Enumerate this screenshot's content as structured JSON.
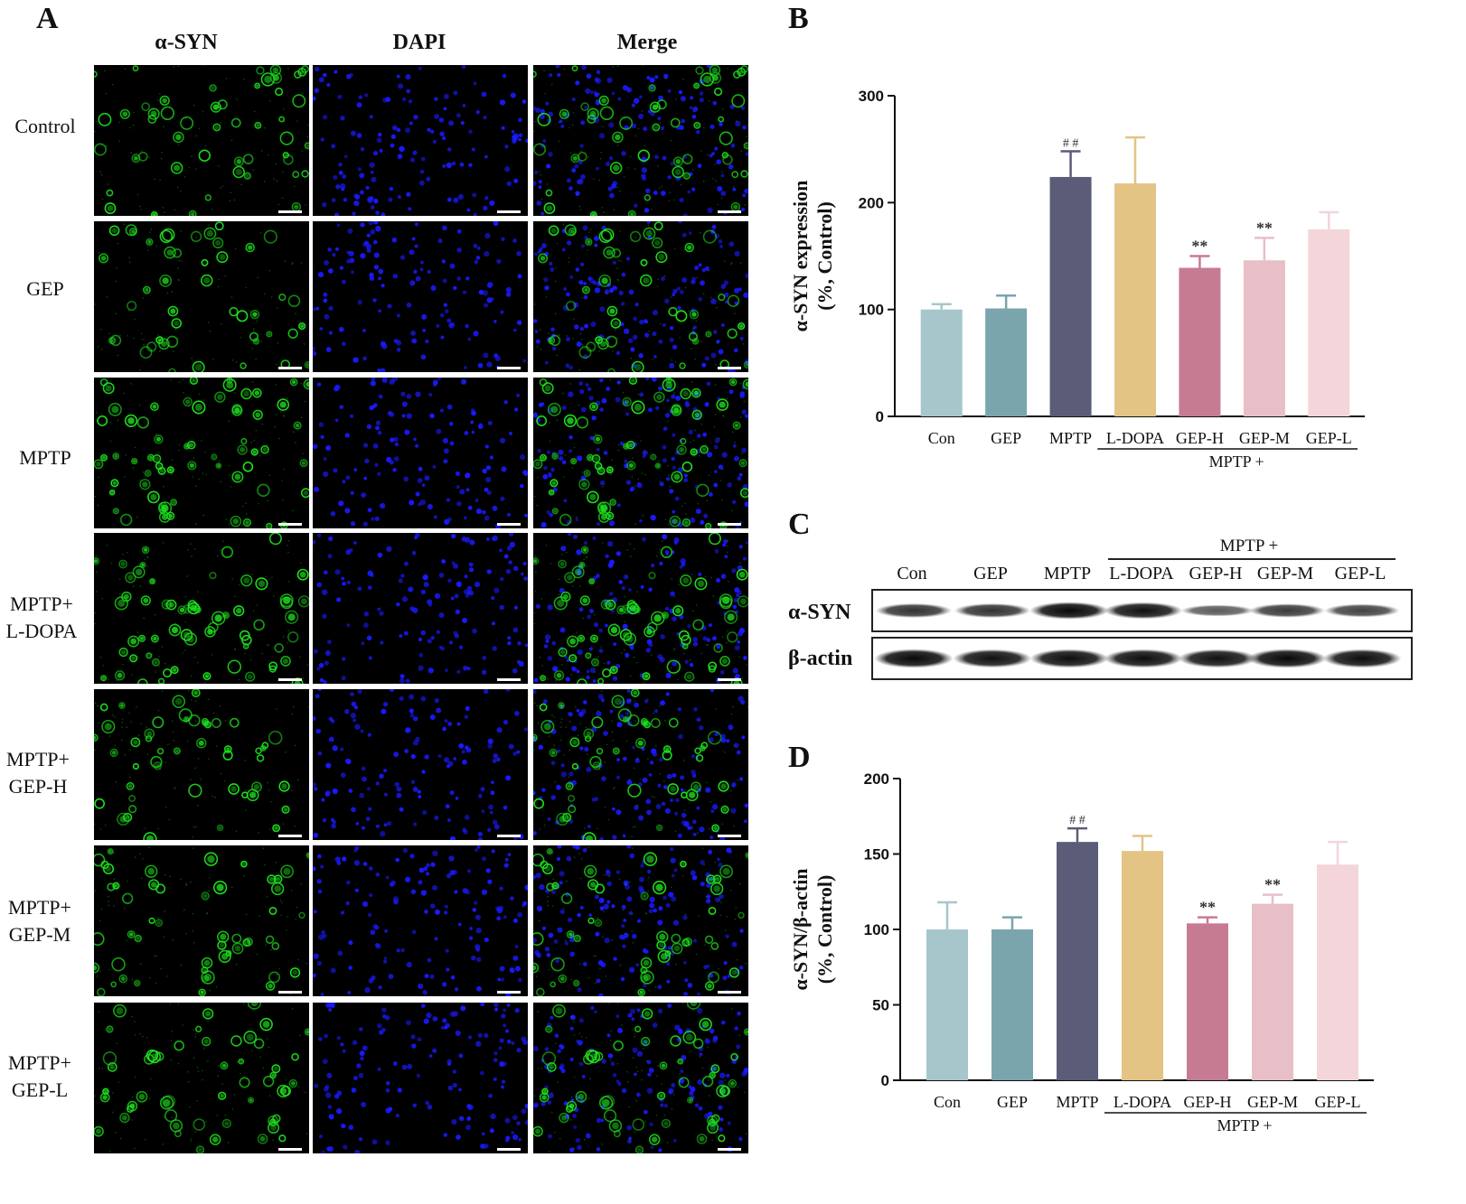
{
  "panels": {
    "A": {
      "letter": "A",
      "column_headers": [
        "α-SYN",
        "DAPI",
        "Merge"
      ],
      "rows": [
        {
          "line1": "Control",
          "line2": ""
        },
        {
          "line1": "GEP",
          "line2": ""
        },
        {
          "line1": "MPTP",
          "line2": ""
        },
        {
          "line1": "MPTP+",
          "line2": "L-DOPA"
        },
        {
          "line1": "MPTP+",
          "line2": "GEP-H"
        },
        {
          "line1": "MPTP+",
          "line2": "GEP-M"
        },
        {
          "line1": "MPTP+",
          "line2": "GEP-L"
        }
      ],
      "green_intensity": [
        0.55,
        0.45,
        0.85,
        0.8,
        0.5,
        0.55,
        0.6
      ],
      "colors": {
        "green": "#1ee01e",
        "blue": "#1a1aff"
      }
    },
    "B": {
      "letter": "B"
    },
    "C": {
      "letter": "C",
      "group_label": "MPTP  +",
      "lanes": [
        "Con",
        "GEP",
        "MPTP",
        "L-DOPA",
        "GEP-H",
        "GEP-M",
        "GEP-L"
      ],
      "rows": [
        "α-SYN",
        "β-actin"
      ],
      "syn_band_strength": [
        0.7,
        0.7,
        0.95,
        0.9,
        0.45,
        0.65,
        0.6
      ],
      "actin_band_strength": [
        0.95,
        0.9,
        0.92,
        0.92,
        0.9,
        0.95,
        0.92
      ]
    },
    "D": {
      "letter": "D"
    }
  },
  "chart_data": [
    {
      "panel": "B",
      "type": "bar",
      "categories": [
        "Con",
        "GEP",
        "MPTP",
        "L-DOPA",
        "GEP-H",
        "GEP-M",
        "GEP-L"
      ],
      "values": [
        100,
        101,
        224,
        218,
        139,
        146,
        175
      ],
      "errors": [
        5,
        12,
        24,
        43,
        11,
        21,
        16
      ],
      "annotations": [
        "",
        "",
        "# #",
        "",
        "**",
        "**",
        ""
      ],
      "colors": [
        "#a7c6cc",
        "#7aa5ad",
        "#5a5c78",
        "#e4c484",
        "#c77b92",
        "#e8bfc6",
        "#f3d5da"
      ],
      "ylabel_line1": "α-SYN expression",
      "ylabel_line2": "(%, Control)",
      "ylim": [
        0,
        300
      ],
      "yticks": [
        0,
        100,
        200,
        300
      ],
      "group_label": "MPTP +",
      "title": "",
      "xlabel": ""
    },
    {
      "panel": "D",
      "type": "bar",
      "categories": [
        "Con",
        "GEP",
        "MPTP",
        "L-DOPA",
        "GEP-H",
        "GEP-M",
        "GEP-L"
      ],
      "values": [
        100,
        100,
        158,
        152,
        104,
        117,
        143
      ],
      "errors": [
        18,
        8,
        9,
        10,
        4,
        6,
        15
      ],
      "annotations": [
        "",
        "",
        "# #",
        "",
        "**",
        "**",
        ""
      ],
      "colors": [
        "#a7c6cc",
        "#7aa5ad",
        "#5a5c78",
        "#e4c484",
        "#c77b92",
        "#e8bfc6",
        "#f3d5da"
      ],
      "ylabel_line1": "α-SYN/β-actin",
      "ylabel_line2": "(%, Control)",
      "ylim": [
        0,
        200
      ],
      "yticks": [
        0,
        50,
        100,
        150,
        200
      ],
      "group_label": "MPTP +",
      "title": "",
      "xlabel": ""
    }
  ]
}
